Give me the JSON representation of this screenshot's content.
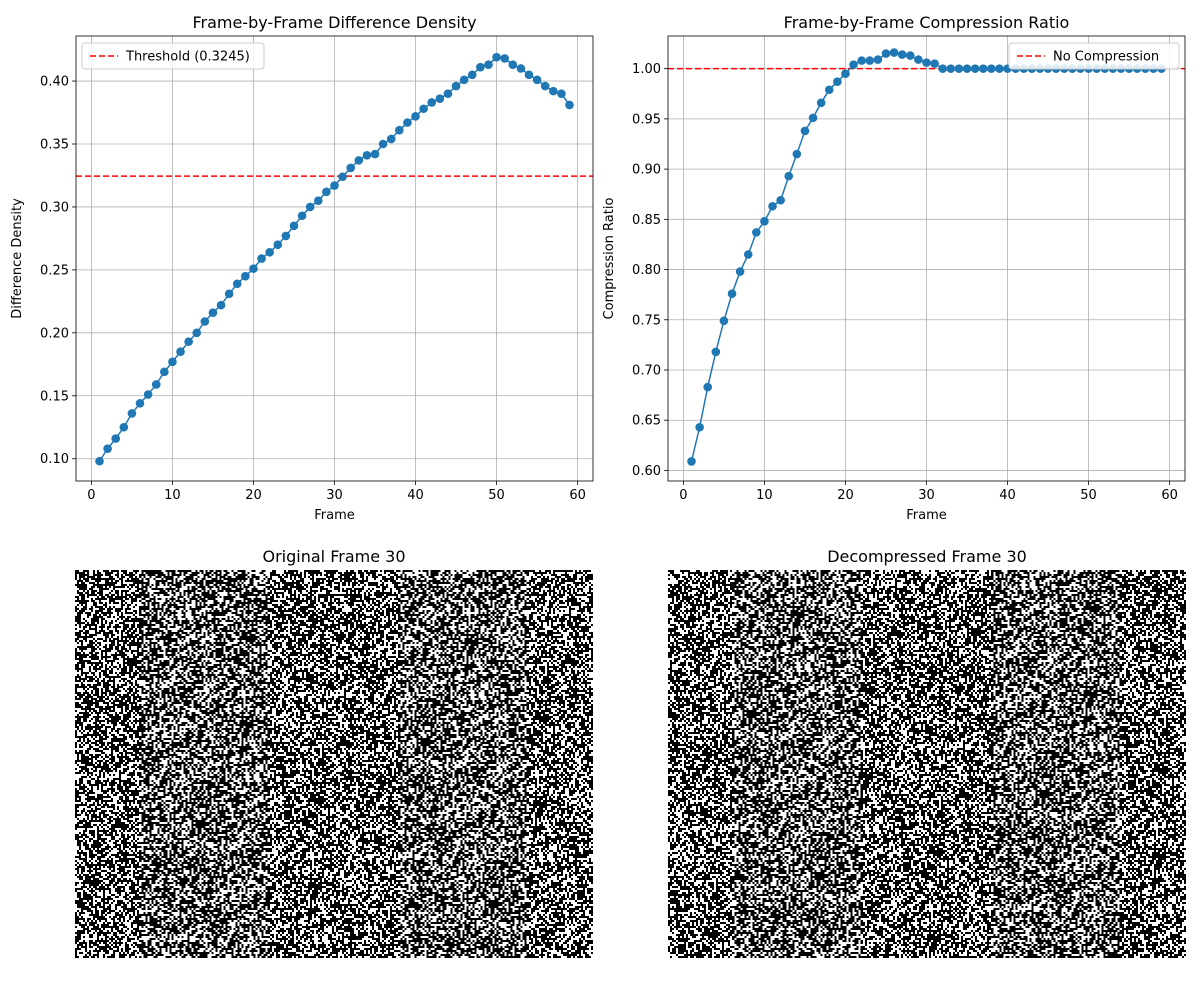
{
  "chart_data": [
    {
      "type": "line",
      "title": "Frame-by-Frame Difference Density",
      "xlabel": "Frame",
      "ylabel": "Difference Density",
      "xlim": [
        -1.9,
        61.9
      ],
      "ylim": [
        0.0823,
        0.4358
      ],
      "xticks": [
        0,
        10,
        20,
        30,
        40,
        50,
        60
      ],
      "yticks": [
        0.1,
        0.15,
        0.2,
        0.25,
        0.3,
        0.35,
        0.4
      ],
      "tick_labels_x": [
        "0",
        "10",
        "20",
        "30",
        "40",
        "50",
        "60"
      ],
      "tick_labels_y": [
        "0.10",
        "0.15",
        "0.20",
        "0.25",
        "0.30",
        "0.35",
        "0.40"
      ],
      "grid": true,
      "legend_position": "upper-left",
      "series": [
        {
          "name": "",
          "color": "#1f77b4",
          "marker": "circle",
          "x": [
            1,
            2,
            3,
            4,
            5,
            6,
            7,
            8,
            9,
            10,
            11,
            12,
            13,
            14,
            15,
            16,
            17,
            18,
            19,
            20,
            21,
            22,
            23,
            24,
            25,
            26,
            27,
            28,
            29,
            30,
            31,
            32,
            33,
            34,
            35,
            36,
            37,
            38,
            39,
            40,
            41,
            42,
            43,
            44,
            45,
            46,
            47,
            48,
            49,
            50,
            51,
            52,
            53,
            54,
            55,
            56,
            57,
            58,
            59
          ],
          "values": [
            0.098,
            0.108,
            0.116,
            0.125,
            0.136,
            0.144,
            0.151,
            0.159,
            0.169,
            0.177,
            0.185,
            0.193,
            0.2,
            0.209,
            0.216,
            0.222,
            0.231,
            0.239,
            0.245,
            0.251,
            0.259,
            0.264,
            0.27,
            0.277,
            0.285,
            0.293,
            0.3,
            0.305,
            0.312,
            0.317,
            0.324,
            0.331,
            0.337,
            0.341,
            0.342,
            0.35,
            0.354,
            0.361,
            0.367,
            0.372,
            0.378,
            0.383,
            0.386,
            0.39,
            0.396,
            0.401,
            0.405,
            0.411,
            0.413,
            0.419,
            0.418,
            0.413,
            0.41,
            0.405,
            0.401,
            0.396,
            0.392,
            0.39,
            0.381
          ]
        }
      ],
      "hline": {
        "value": 0.3245,
        "label": "Threshold (0.3245)",
        "color": "#ff0000",
        "style": "dashed"
      }
    },
    {
      "type": "line",
      "title": "Frame-by-Frame Compression Ratio",
      "xlabel": "Frame",
      "ylabel": "Compression Ratio",
      "xlim": [
        -1.9,
        61.9
      ],
      "ylim": [
        0.5895,
        1.0325
      ],
      "xticks": [
        0,
        10,
        20,
        30,
        40,
        50,
        60
      ],
      "yticks": [
        0.6,
        0.65,
        0.7,
        0.75,
        0.8,
        0.85,
        0.9,
        0.95,
        1.0
      ],
      "tick_labels_x": [
        "0",
        "10",
        "20",
        "30",
        "40",
        "50",
        "60"
      ],
      "tick_labels_y": [
        "0.60",
        "0.65",
        "0.70",
        "0.75",
        "0.80",
        "0.85",
        "0.90",
        "0.95",
        "1.00"
      ],
      "grid": true,
      "legend_position": "upper-right",
      "series": [
        {
          "name": "",
          "color": "#1f77b4",
          "marker": "circle",
          "x": [
            1,
            2,
            3,
            4,
            5,
            6,
            7,
            8,
            9,
            10,
            11,
            12,
            13,
            14,
            15,
            16,
            17,
            18,
            19,
            20,
            21,
            22,
            23,
            24,
            25,
            26,
            27,
            28,
            29,
            30,
            31,
            32,
            33,
            34,
            35,
            36,
            37,
            38,
            39,
            40,
            41,
            42,
            43,
            44,
            45,
            46,
            47,
            48,
            49,
            50,
            51,
            52,
            53,
            54,
            55,
            56,
            57,
            58,
            59
          ],
          "values": [
            0.609,
            0.643,
            0.683,
            0.718,
            0.749,
            0.776,
            0.798,
            0.815,
            0.837,
            0.848,
            0.863,
            0.869,
            0.893,
            0.915,
            0.938,
            0.951,
            0.966,
            0.979,
            0.987,
            0.995,
            1.004,
            1.008,
            1.008,
            1.009,
            1.015,
            1.016,
            1.014,
            1.013,
            1.009,
            1.006,
            1.005,
            1.0,
            1.0,
            1.0,
            1.0,
            1.0,
            1.0,
            1.0,
            1.0,
            1.0,
            1.0,
            1.0,
            1.0,
            1.0,
            1.0,
            1.0,
            1.0,
            1.0,
            1.0,
            1.0,
            1.0,
            1.0,
            1.0,
            1.0,
            1.0,
            1.0,
            1.0,
            1.0,
            1.0
          ]
        }
      ],
      "hline": {
        "value": 1.0,
        "label": "No Compression",
        "color": "#ff0000",
        "style": "dashed"
      }
    }
  ],
  "images": {
    "original": {
      "title": "Original Frame 30",
      "noise_seed": 30,
      "white_fraction": 0.5
    },
    "decompressed": {
      "title": "Decompressed Frame 30",
      "noise_seed": 30,
      "white_fraction": 0.5
    }
  }
}
